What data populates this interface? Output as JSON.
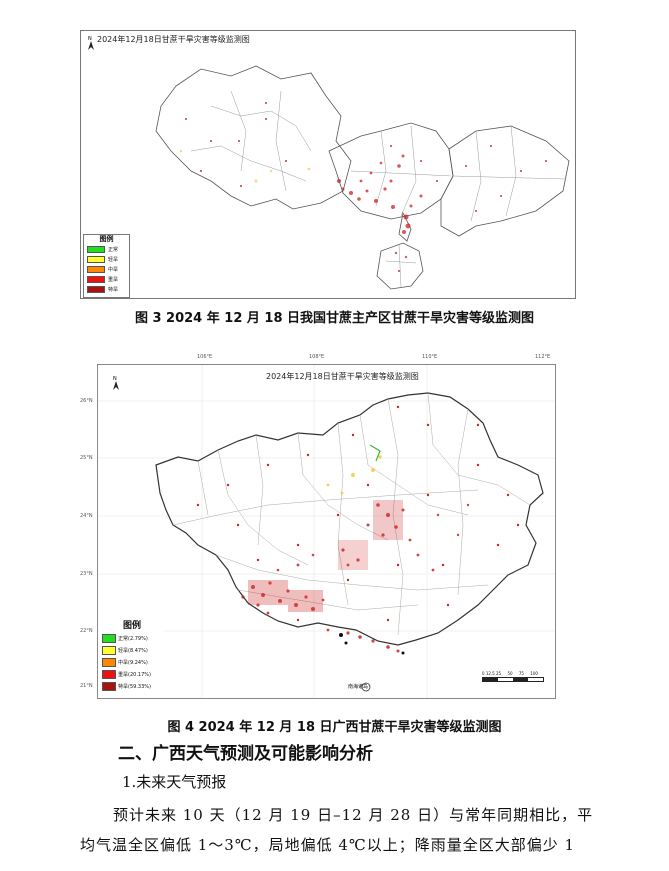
{
  "figure3": {
    "map_title": "2024年12月18日甘蔗干旱灾害等级监测图",
    "caption": "图 3  2024 年 12 月 18 日我国甘蔗主产区甘蔗干旱灾害等级监测图",
    "legend": {
      "title": "图例",
      "items": [
        {
          "label": "正常",
          "color": "#22dd22"
        },
        {
          "label": "轻旱",
          "color": "#ffff33"
        },
        {
          "label": "中旱",
          "color": "#ff8800"
        },
        {
          "label": "重旱",
          "color": "#ee1111"
        },
        {
          "label": "特旱",
          "color": "#aa1111"
        }
      ]
    }
  },
  "figure4": {
    "map_title": "2024年12月18日甘蔗干旱灾害等级监测图",
    "caption": "图 4  2024 年 12 月 18 日广西甘蔗干旱灾害等级监测图",
    "lon_ticks": [
      "106°E",
      "108°E",
      "110°E",
      "112°E"
    ],
    "lat_ticks": [
      "26°N",
      "25°N",
      "24°N",
      "23°N",
      "22°N",
      "21°N"
    ],
    "legend": {
      "title": "图例",
      "items": [
        {
          "label": "正常(2.79%)",
          "color": "#22dd22"
        },
        {
          "label": "轻旱(8.47%)",
          "color": "#ffff33"
        },
        {
          "label": "中旱(9.24%)",
          "color": "#ff8800"
        },
        {
          "label": "重旱(20.17%)",
          "color": "#ee1111"
        },
        {
          "label": "特旱(59.33%)",
          "color": "#aa1111"
        }
      ]
    },
    "scale_text": "0 12.5 25     50     75     100",
    "inset_label": "南海诸岛"
  },
  "section": {
    "heading": "二、广西天气预测及可能影响分析",
    "subheading": "1.未来天气预报",
    "para_line1": "预计未来 10 天（12 月 19 日–12 月 28 日）与常年同期相比，平",
    "para_line2": "均气温全区偏低 1～3℃，局地偏低 4℃以上；降雨量全区大部偏少 1"
  }
}
